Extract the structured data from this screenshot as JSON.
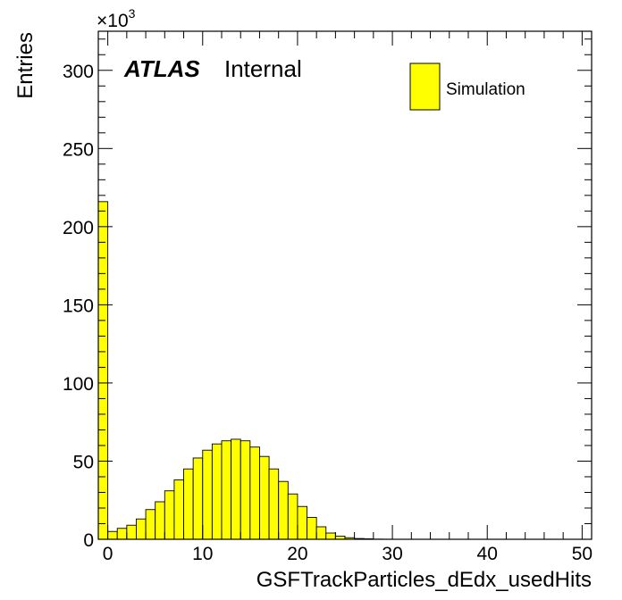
{
  "chart_data": {
    "type": "bar",
    "title": "",
    "xlabel": "GSFTrackParticles_dEdx_usedHits",
    "ylabel": "Entries",
    "y_multiplier": "×10",
    "y_multiplier_exp": "3",
    "xlim": [
      -1,
      51
    ],
    "ylim": [
      0,
      325
    ],
    "x_ticks": [
      0,
      10,
      20,
      30,
      40,
      50
    ],
    "y_ticks": [
      0,
      50,
      100,
      150,
      200,
      250,
      300
    ],
    "bin_width": 1,
    "bin_edges_start": -1,
    "values": [
      216,
      5,
      7,
      9,
      13,
      19,
      24,
      31,
      38,
      45,
      52,
      57,
      61,
      63,
      64,
      63,
      59,
      53,
      45,
      37,
      29,
      21,
      14,
      8,
      4,
      2,
      1,
      0.5,
      0.3,
      0.1,
      0.05,
      0,
      0,
      0,
      0,
      0,
      0,
      0,
      0,
      0,
      0,
      0,
      0,
      0,
      0,
      0,
      0,
      0,
      0,
      0,
      0,
      0
    ],
    "series": [
      {
        "name": "Simulation",
        "color": "#ffff00"
      }
    ],
    "legend_position": "top-right",
    "grid": false
  },
  "labels": {
    "atlas": "ATLAS",
    "internal": "Internal",
    "legend_entry": "Simulation"
  },
  "colors": {
    "fill": "#ffff00",
    "stroke": "#000000"
  }
}
